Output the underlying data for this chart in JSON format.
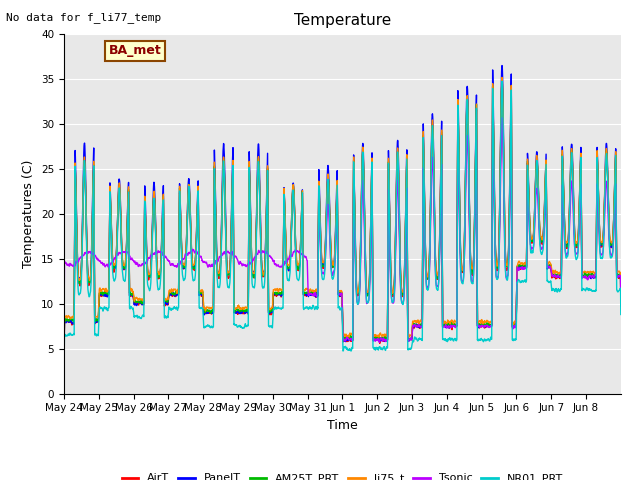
{
  "title": "Temperature",
  "ylabel": "Temperatures (C)",
  "xlabel": "Time",
  "annotation": "No data for f_li77_temp",
  "legend_label": "BA_met",
  "ylim": [
    0,
    40
  ],
  "yticks": [
    0,
    5,
    10,
    15,
    20,
    25,
    30,
    35,
    40
  ],
  "series_order": [
    "AirT",
    "PanelT",
    "AM25T_PRT",
    "li75_t",
    "Tsonic",
    "NR01_PRT"
  ],
  "series": {
    "AirT": {
      "color": "#ff0000",
      "lw": 1.0
    },
    "PanelT": {
      "color": "#0000ff",
      "lw": 1.0
    },
    "AM25T_PRT": {
      "color": "#00bb00",
      "lw": 1.0
    },
    "li75_t": {
      "color": "#ff8800",
      "lw": 1.0
    },
    "Tsonic": {
      "color": "#bb00ff",
      "lw": 1.0
    },
    "NR01_PRT": {
      "color": "#00cccc",
      "lw": 1.0
    }
  },
  "bg_color": "#e8e8e8",
  "fig_color": "#ffffff",
  "n_days": 16,
  "xtick_labels": [
    "May 24",
    "May 25",
    "May 26",
    "May 27",
    "May 28",
    "May 29",
    "May 30",
    "May 31",
    "Jun 1",
    "Jun 2",
    "Jun 3",
    "Jun 4",
    "Jun 5",
    "Jun 6",
    "Jun 7",
    "Jun 8"
  ],
  "daily_max": [
    26,
    23,
    22,
    23,
    26,
    26,
    23,
    24,
    27,
    27,
    30,
    33,
    35,
    26,
    27,
    27
  ],
  "daily_min": [
    8,
    11,
    10,
    11,
    9,
    9,
    11,
    11,
    6,
    6,
    7.5,
    7.5,
    7.5,
    14,
    13,
    13
  ],
  "panel_extra": [
    2,
    1,
    1.5,
    1,
    2,
    2,
    0.5,
    1.5,
    1,
    1.5,
    1.5,
    1.5,
    2,
    1,
    1,
    1
  ],
  "tsonic_flat_days": 7,
  "tsonic_flat_level": 15.0
}
